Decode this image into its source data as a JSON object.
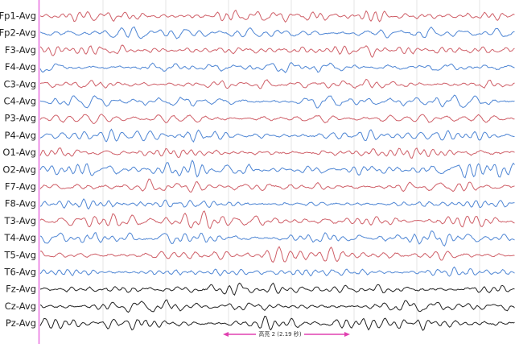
{
  "channels": [
    {
      "label": "Fp1-Avg",
      "color": "#cf5f68"
    },
    {
      "label": "Fp2-Avg",
      "color": "#4f86d4"
    },
    {
      "label": "F3-Avg",
      "color": "#cf5f68"
    },
    {
      "label": "F4-Avg",
      "color": "#4f86d4"
    },
    {
      "label": "C3-Avg",
      "color": "#cf5f68"
    },
    {
      "label": "C4-Avg",
      "color": "#4f86d4"
    },
    {
      "label": "P3-Avg",
      "color": "#cf5f68"
    },
    {
      "label": "P4-Avg",
      "color": "#4f86d4"
    },
    {
      "label": "O1-Avg",
      "color": "#cf5f68"
    },
    {
      "label": "O2-Avg",
      "color": "#4f86d4"
    },
    {
      "label": "F7-Avg",
      "color": "#cf5f68"
    },
    {
      "label": "F8-Avg",
      "color": "#4f86d4"
    },
    {
      "label": "T3-Avg",
      "color": "#cf5f68"
    },
    {
      "label": "T4-Avg",
      "color": "#4f86d4"
    },
    {
      "label": "T5-Avg",
      "color": "#cf5f68"
    },
    {
      "label": "T6-Avg",
      "color": "#4f86d4"
    },
    {
      "label": "Fz-Avg",
      "color": "#222222"
    },
    {
      "label": "Cz-Avg",
      "color": "#222222"
    },
    {
      "label": "Pz-Avg",
      "color": "#222222"
    }
  ],
  "annotation": {
    "label": "高亮 2 (2.19 秒)",
    "color": "#e040b0"
  }
}
